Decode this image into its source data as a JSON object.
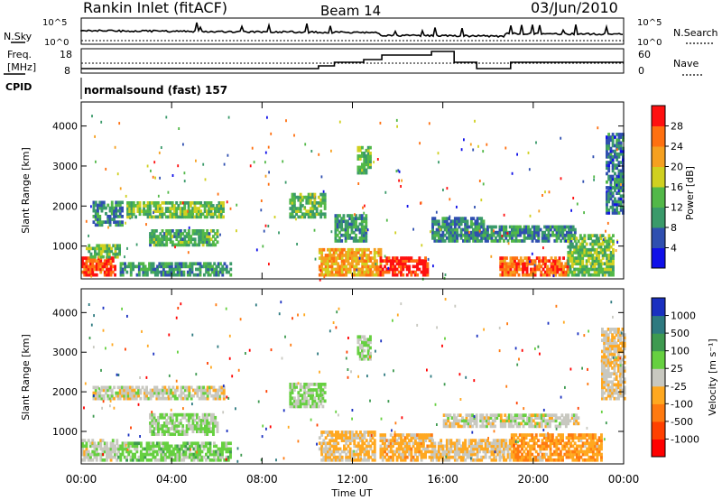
{
  "header": {
    "title": "Rankin Inlet (fitACF)",
    "beam": "Beam 14",
    "date": "03/Jun/2010"
  },
  "nsky_panel": {
    "label": "N.Sky",
    "left_ticks": [
      "10^5",
      "10^0"
    ],
    "right_label": "N.Search",
    "right_ticks": [
      "10^5",
      "10^0"
    ]
  },
  "freq_panel": {
    "label_line1": "Freq.",
    "label_line2": "[MHz]",
    "left_ticks": [
      "18",
      "8"
    ],
    "right_label": "Nave",
    "right_ticks": [
      "60",
      "0"
    ]
  },
  "cpid": {
    "label": "CPID",
    "value": "normalsound (fast) 157"
  },
  "colors": {
    "power": [
      "#1010e8",
      "#2f4fb0",
      "#3a9a6a",
      "#52b848",
      "#d0d020",
      "#f5a020",
      "#ff7010",
      "#ff1010"
    ],
    "velocity": [
      "#ff0000",
      "#ff4000",
      "#ff7a10",
      "#ffa820",
      "#c8c8c0",
      "#66d040",
      "#3e9a50",
      "#2e7a80",
      "#1a30c0"
    ]
  },
  "chart_data": [
    {
      "type": "heatmap",
      "name": "power",
      "ylabel": "Slant Range [km]",
      "xlabel": "",
      "yticks": [
        "1000",
        "2000",
        "3000",
        "4000"
      ],
      "ylim": [
        180,
        4600
      ],
      "xlim": [
        0,
        24
      ],
      "colorbar": {
        "label": "Power [dB]",
        "ticks": [
          "4",
          "8",
          "12",
          "16",
          "20",
          "24",
          "28"
        ],
        "range": [
          0,
          32
        ]
      },
      "bands": [
        {
          "t0": 0.0,
          "t1": 1.5,
          "r0": 250,
          "r1": 700,
          "level": 28
        },
        {
          "t0": 0.2,
          "t1": 1.7,
          "r0": 700,
          "r1": 1000,
          "level": 14
        },
        {
          "t0": 1.7,
          "t1": 6.6,
          "r0": 250,
          "r1": 600,
          "level": 10
        },
        {
          "t0": 2.0,
          "t1": 6.3,
          "r0": 1700,
          "r1": 2100,
          "level": 14
        },
        {
          "t0": 0.5,
          "t1": 1.8,
          "r0": 1500,
          "r1": 2100,
          "level": 9
        },
        {
          "t0": 3.0,
          "t1": 6.0,
          "r0": 1000,
          "r1": 1400,
          "level": 12
        },
        {
          "t0": 9.2,
          "t1": 10.8,
          "r0": 1700,
          "r1": 2300,
          "level": 13
        },
        {
          "t0": 10.5,
          "t1": 13.2,
          "r0": 250,
          "r1": 900,
          "level": 22
        },
        {
          "t0": 11.2,
          "t1": 12.6,
          "r0": 1100,
          "r1": 1800,
          "level": 11
        },
        {
          "t0": 13.2,
          "t1": 15.3,
          "r0": 250,
          "r1": 700,
          "level": 30
        },
        {
          "t0": 15.5,
          "t1": 17.8,
          "r0": 1100,
          "r1": 1700,
          "level": 9
        },
        {
          "t0": 17.3,
          "t1": 21.8,
          "r0": 1100,
          "r1": 1500,
          "level": 10
        },
        {
          "t0": 18.5,
          "t1": 21.5,
          "r0": 250,
          "r1": 700,
          "level": 26
        },
        {
          "t0": 21.5,
          "t1": 23.5,
          "r0": 250,
          "r1": 1300,
          "level": 14
        },
        {
          "t0": 12.2,
          "t1": 12.8,
          "r0": 2800,
          "r1": 3500,
          "level": 13
        },
        {
          "t0": 23.2,
          "t1": 24.0,
          "r0": 1800,
          "r1": 3800,
          "level": 8
        }
      ]
    },
    {
      "type": "heatmap",
      "name": "velocity",
      "ylabel": "Slant Range [km]",
      "xlabel": "Time UT",
      "xticks": [
        "00:00",
        "04:00",
        "08:00",
        "12:00",
        "16:00",
        "20:00",
        "00:00"
      ],
      "yticks": [
        "1000",
        "2000",
        "3000",
        "4000"
      ],
      "ylim": [
        180,
        4600
      ],
      "xlim": [
        0,
        24
      ],
      "colorbar": {
        "label": "Velocity [m s⁻¹]",
        "ticks": [
          "1000",
          "500",
          "100",
          "25",
          "-25",
          "-100",
          "-500",
          "-1000"
        ],
        "range": [
          -1500,
          1500
        ]
      },
      "bands": [
        {
          "t0": 0.0,
          "t1": 1.6,
          "r0": 250,
          "r1": 800,
          "level": 50
        },
        {
          "t0": 1.6,
          "t1": 6.6,
          "r0": 250,
          "r1": 700,
          "level": 300
        },
        {
          "t0": 0.5,
          "t1": 6.3,
          "r0": 1800,
          "r1": 2100,
          "level": 0
        },
        {
          "t0": 3.0,
          "t1": 6.0,
          "r0": 900,
          "r1": 1400,
          "level": 200
        },
        {
          "t0": 9.2,
          "t1": 10.8,
          "r0": 1600,
          "r1": 2200,
          "level": 200
        },
        {
          "t0": 10.5,
          "t1": 13.0,
          "r0": 250,
          "r1": 1000,
          "level": -200
        },
        {
          "t0": 13.2,
          "t1": 15.5,
          "r0": 250,
          "r1": 900,
          "level": -300
        },
        {
          "t0": 15.5,
          "t1": 19.0,
          "r0": 250,
          "r1": 800,
          "level": -200
        },
        {
          "t0": 16.0,
          "t1": 22.0,
          "r0": 1100,
          "r1": 1400,
          "level": 0
        },
        {
          "t0": 19.0,
          "t1": 23.0,
          "r0": 250,
          "r1": 900,
          "level": -400
        },
        {
          "t0": 12.2,
          "t1": 12.8,
          "r0": 2800,
          "r1": 3400,
          "level": 200
        },
        {
          "t0": 23.0,
          "t1": 24.0,
          "r0": 1800,
          "r1": 3600,
          "level": -100
        }
      ]
    }
  ]
}
